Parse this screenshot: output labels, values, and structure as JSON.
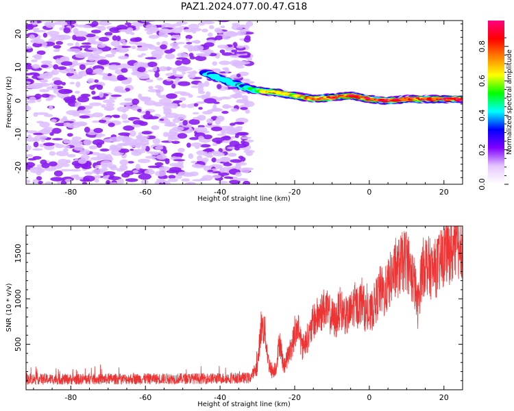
{
  "chart_data": [
    {
      "type": "heatmap",
      "title": "PAZ1.2024.077.00.47.G18",
      "xlabel": "Height of straight line (km)",
      "ylabel": "Frequency (Hz)",
      "xlim": [
        -92,
        25
      ],
      "ylim": [
        -25,
        24
      ],
      "x_ticks": [
        -80,
        -60,
        -40,
        -20,
        0,
        20
      ],
      "y_ticks": [
        -20,
        -10,
        0,
        10,
        20
      ],
      "colorbar": {
        "label": "Normalized spectral amplitude",
        "range": [
          0,
          0.95
        ],
        "ticks": [
          0.0,
          0.2,
          0.4,
          0.6,
          0.8
        ],
        "colormap": [
          "#ffffff",
          "#e6c8ff",
          "#8000ff",
          "#0000ff",
          "#00ffff",
          "#00ff00",
          "#ffff00",
          "#ff8000",
          "#ff0000",
          "#ff0080"
        ]
      },
      "noise_region": {
        "x": [
          -92,
          -32
        ],
        "y": [
          -25,
          24
        ],
        "amplitude": [
          0.02,
          0.12
        ]
      },
      "signal_ridge": [
        {
          "x": -44,
          "y": 8.5,
          "amp": 0.35
        },
        {
          "x": -40,
          "y": 6.5,
          "amp": 0.4
        },
        {
          "x": -33,
          "y": 4.0,
          "amp": 0.45
        },
        {
          "x": -30,
          "y": 3.0,
          "amp": 0.55
        },
        {
          "x": -25,
          "y": 2.5,
          "amp": 0.7
        },
        {
          "x": -20,
          "y": 1.5,
          "amp": 0.6
        },
        {
          "x": -15,
          "y": 0.5,
          "amp": 0.75
        },
        {
          "x": -10,
          "y": 1.0,
          "amp": 0.85
        },
        {
          "x": -5,
          "y": 1.5,
          "amp": 0.8
        },
        {
          "x": 0,
          "y": 0.5,
          "amp": 0.85
        },
        {
          "x": 5,
          "y": 0.0,
          "amp": 0.9
        },
        {
          "x": 10,
          "y": 0.5,
          "amp": 0.85
        },
        {
          "x": 15,
          "y": 0.5,
          "amp": 0.9
        },
        {
          "x": 20,
          "y": 0.5,
          "amp": 0.9
        },
        {
          "x": 25,
          "y": 0.5,
          "amp": 0.85
        }
      ]
    },
    {
      "type": "line",
      "xlabel": "Height of straight line (km)",
      "ylabel": "SNR (10 * v/v)",
      "xlim": [
        -92,
        25
      ],
      "ylim": [
        0,
        1800
      ],
      "x_ticks": [
        -80,
        -60,
        -40,
        -20,
        0,
        20
      ],
      "y_ticks": [
        500,
        1000,
        1500
      ],
      "line_color": "#ee3333",
      "x": [
        -92,
        -80,
        -60,
        -40,
        -32,
        -30,
        -29,
        -28,
        -27,
        -26,
        -25,
        -24,
        -23,
        -22,
        -21,
        -20,
        -19,
        -18,
        -17,
        -16,
        -15,
        -14,
        -13,
        -12,
        -11,
        -10,
        -9,
        -8,
        -7,
        -6,
        -5,
        -4,
        -3,
        -2,
        -1,
        0,
        1,
        2,
        3,
        4,
        5,
        6,
        7,
        8,
        9,
        10,
        11,
        12,
        13,
        14,
        15,
        16,
        17,
        18,
        19,
        20,
        21,
        22,
        23,
        24,
        25
      ],
      "y": [
        120,
        115,
        120,
        125,
        130,
        250,
        700,
        650,
        300,
        200,
        250,
        550,
        250,
        350,
        450,
        600,
        700,
        450,
        550,
        600,
        750,
        800,
        850,
        900,
        850,
        800,
        750,
        900,
        850,
        800,
        850,
        950,
        900,
        1000,
        850,
        800,
        900,
        1000,
        1100,
        1050,
        1150,
        1250,
        1300,
        1350,
        1400,
        1450,
        1300,
        1200,
        900,
        1300,
        1400,
        1350,
        1300,
        1350,
        1400,
        1500,
        1550,
        1500,
        1550,
        1600,
        1620
      ]
    }
  ]
}
